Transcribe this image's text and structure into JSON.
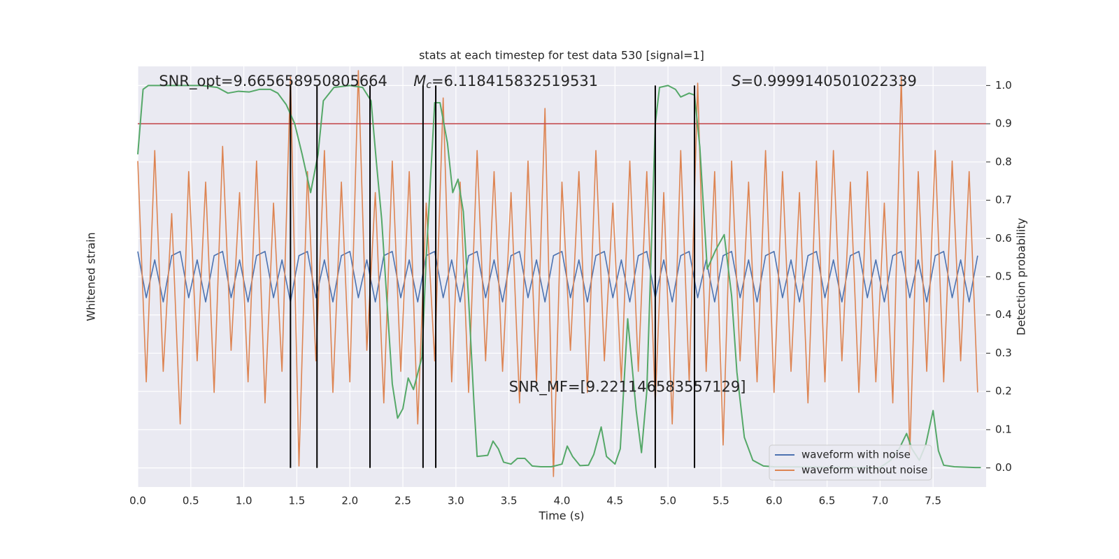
{
  "chart_data": {
    "type": "line",
    "title": "stats at each timestep for test data 530 [signal=1]",
    "xlabel": "Time (s)",
    "ylabel": "Whitened strain",
    "y2label": "Detection probability",
    "xlim": [
      0,
      8
    ],
    "xticks": [
      {
        "value": 0,
        "label": "0.0"
      },
      0.5,
      {
        "value": 1,
        "label": "1.0"
      },
      1.5,
      {
        "value": 2,
        "label": "2.0"
      },
      2.5,
      {
        "value": 3,
        "label": "3.0"
      },
      3.5,
      {
        "value": 4,
        "label": "4.0"
      },
      4.5,
      {
        "value": 5,
        "label": "5.0"
      },
      5.5,
      {
        "value": 6,
        "label": "6.0"
      },
      6.5,
      {
        "value": 7,
        "label": "7.0"
      },
      7.5
    ],
    "ylim": [
      -1,
      1
    ],
    "y2lim": [
      -0.05,
      1.05
    ],
    "y2ticks": [
      {
        "value": 0,
        "label": "0.0"
      },
      0.1,
      0.2,
      0.3,
      0.4,
      0.5,
      0.6,
      0.7,
      0.8,
      0.9,
      {
        "value": 1,
        "label": "1.0"
      }
    ],
    "grid": true,
    "legend": "lower right",
    "x": [
      0,
      0.08,
      0.16,
      0.24,
      0.32,
      0.4,
      0.48,
      0.56,
      0.64,
      0.72,
      0.8,
      0.88,
      0.96,
      1.04,
      1.12,
      1.2,
      1.28,
      1.36,
      1.44,
      1.52,
      1.6,
      1.68,
      1.76,
      1.84,
      1.92,
      2,
      2.08,
      2.16,
      2.24,
      2.32,
      2.4,
      2.48,
      2.56,
      2.64,
      2.72,
      2.8,
      2.88,
      2.96,
      3.04,
      3.12,
      3.2,
      3.28,
      3.36,
      3.44,
      3.52,
      3.6,
      3.68,
      3.76,
      3.84,
      3.92,
      4,
      4.08,
      4.16,
      4.24,
      4.32,
      4.4,
      4.48,
      4.56,
      4.64,
      4.72,
      4.8,
      4.88,
      4.96,
      5.04,
      5.12,
      5.2,
      5.28,
      5.36,
      5.44,
      5.52,
      5.6,
      5.68,
      5.76,
      5.84,
      5.92,
      6,
      6.08,
      6.16,
      6.24,
      6.32,
      6.4,
      6.48,
      6.56,
      6.64,
      6.72,
      6.8,
      6.88,
      6.96,
      7.04,
      7.12,
      7.2,
      7.28,
      7.36,
      7.44,
      7.52,
      7.6,
      7.68,
      7.76,
      7.84,
      7.92
    ],
    "series": [
      {
        "name": "waveform with noise",
        "color": "#4c72b0",
        "axis": "y",
        "values": [
          0.12,
          -0.1,
          0.08,
          -0.12,
          0.1,
          0.12,
          -0.1,
          0.08,
          -0.12,
          0.1,
          0.12,
          -0.1,
          0.08,
          -0.12,
          0.1,
          0.12,
          -0.1,
          0.08,
          -0.12,
          0.1,
          0.12,
          -0.1,
          0.08,
          -0.12,
          0.1,
          0.12,
          -0.1,
          0.08,
          -0.12,
          0.1,
          0.12,
          -0.1,
          0.08,
          -0.12,
          0.1,
          0.12,
          -0.1,
          0.08,
          -0.12,
          0.1,
          0.12,
          -0.1,
          0.08,
          -0.12,
          0.1,
          0.12,
          -0.1,
          0.08,
          -0.12,
          0.1,
          0.12,
          -0.1,
          0.08,
          -0.12,
          0.1,
          0.12,
          -0.1,
          0.08,
          -0.12,
          0.1,
          0.12,
          -0.1,
          0.08,
          -0.12,
          0.1,
          0.12,
          -0.1,
          0.08,
          -0.12,
          0.1,
          0.12,
          -0.1,
          0.08,
          -0.12,
          0.1,
          0.12,
          -0.1,
          0.08,
          -0.12,
          0.1,
          0.12,
          -0.1,
          0.08,
          -0.12,
          0.1,
          0.12,
          -0.1,
          0.08,
          -0.12,
          0.1,
          0.12,
          -0.1,
          0.08,
          -0.12,
          0.1,
          0.12,
          -0.1,
          0.08,
          -0.12,
          0.1
        ]
      },
      {
        "name": "waveform without noise",
        "color": "#dd8452",
        "axis": "y",
        "values": [
          0.55,
          -0.5,
          0.6,
          -0.45,
          0.3,
          -0.7,
          0.5,
          -0.4,
          0.45,
          -0.55,
          0.62,
          -0.35,
          0.4,
          -0.5,
          0.55,
          -0.6,
          0.35,
          -0.45,
          0.95,
          -0.9,
          0.5,
          -0.4,
          0.6,
          -0.55,
          0.45,
          -0.5,
          0.98,
          -0.35,
          0.4,
          -0.6,
          0.55,
          -0.45,
          0.5,
          -0.7,
          0.35,
          -0.4,
          0.85,
          -0.5,
          0.45,
          -0.55,
          0.6,
          -0.4,
          0.5,
          -0.45,
          0.4,
          -0.6,
          0.55,
          -0.5,
          0.8,
          -0.95,
          0.45,
          -0.35,
          0.5,
          -0.55,
          0.6,
          -0.4,
          0.35,
          -0.5,
          0.55,
          -0.45,
          0.5,
          -0.6,
          0.4,
          -0.7,
          0.6,
          -0.5,
          0.92,
          -0.45,
          0.5,
          -0.8,
          0.55,
          -0.4,
          0.45,
          -0.5,
          0.6,
          -0.55,
          0.5,
          -0.45,
          0.4,
          -0.6,
          0.55,
          -0.5,
          0.6,
          -0.4,
          0.45,
          -0.55,
          0.5,
          -0.5,
          0.35,
          -0.6,
          0.95,
          -0.85,
          0.5,
          -0.45,
          0.6,
          -0.5,
          0.55,
          -0.4,
          0.5,
          -0.55
        ]
      },
      {
        "color": "#55a868",
        "axis": "y2",
        "x": [
          0,
          0.05,
          0.1,
          0.3,
          0.6,
          0.75,
          0.85,
          0.95,
          1.05,
          1.15,
          1.25,
          1.32,
          1.4,
          1.48,
          1.55,
          1.63,
          1.7,
          1.75,
          1.85,
          2,
          2.12,
          2.2,
          2.25,
          2.3,
          2.4,
          2.45,
          2.5,
          2.55,
          2.6,
          2.68,
          2.72,
          2.8,
          2.85,
          2.92,
          2.97,
          3.02,
          3.07,
          3.12,
          3.17,
          3.2,
          3.3,
          3.35,
          3.4,
          3.45,
          3.52,
          3.58,
          3.65,
          3.72,
          3.8,
          3.9,
          4,
          4.05,
          4.1,
          4.17,
          4.25,
          4.3,
          4.37,
          4.42,
          4.5,
          4.55,
          4.62,
          4.7,
          4.75,
          4.8,
          4.88,
          4.92,
          5,
          5.07,
          5.12,
          5.2,
          5.25,
          5.3,
          5.37,
          5.45,
          5.53,
          5.6,
          5.65,
          5.72,
          5.8,
          5.9,
          6,
          7,
          7.1,
          7.18,
          7.25,
          7.3,
          7.37,
          7.43,
          7.5,
          7.55,
          7.6,
          7.7,
          7.9,
          7.95
        ],
        "values": [
          0.82,
          0.99,
          1,
          1,
          1,
          0.995,
          0.98,
          0.985,
          0.983,
          0.99,
          0.99,
          0.98,
          0.95,
          0.9,
          0.82,
          0.72,
          0.82,
          0.96,
          0.995,
          1,
          0.995,
          0.96,
          0.8,
          0.65,
          0.22,
          0.13,
          0.155,
          0.235,
          0.205,
          0.29,
          0.55,
          0.955,
          0.955,
          0.85,
          0.72,
          0.755,
          0.67,
          0.44,
          0.17,
          0.03,
          0.033,
          0.07,
          0.05,
          0.015,
          0.01,
          0.025,
          0.025,
          0.005,
          0.003,
          0.003,
          0.01,
          0.057,
          0.03,
          0.006,
          0.007,
          0.035,
          0.107,
          0.03,
          0.01,
          0.05,
          0.39,
          0.15,
          0.04,
          0.2,
          0.9,
          0.995,
          1,
          0.99,
          0.97,
          0.98,
          0.975,
          0.84,
          0.52,
          0.57,
          0.61,
          0.45,
          0.25,
          0.08,
          0.02,
          0.005,
          0.003,
          0.001,
          0.02,
          0.05,
          0.09,
          0.05,
          0.02,
          0.06,
          0.15,
          0.045,
          0.007,
          0.003,
          0.001,
          0.001
        ]
      }
    ],
    "threshold": {
      "value": 0.9,
      "color": "#c44e52",
      "axis": "y2"
    },
    "vlines": {
      "values": [
        1.44,
        1.69,
        2.19,
        2.69,
        2.81,
        4.88,
        5.25
      ],
      "color": "#000000"
    },
    "annotations": [
      {
        "text": "SNR_opt=9.665658950805664",
        "x": 0.2,
        "y": 1.01
      },
      {
        "symbol": "M",
        "sub": "c",
        "text": "=6.118415832519531",
        "x": 2.6,
        "y": 1.01
      },
      {
        "symbol": "S",
        "text": "=0.9999140501022339",
        "x": 5.6,
        "y": 1.01
      },
      {
        "text": "SNR_MF=[9.221146583557129]",
        "x": 3.5,
        "y": 0.21
      }
    ]
  }
}
